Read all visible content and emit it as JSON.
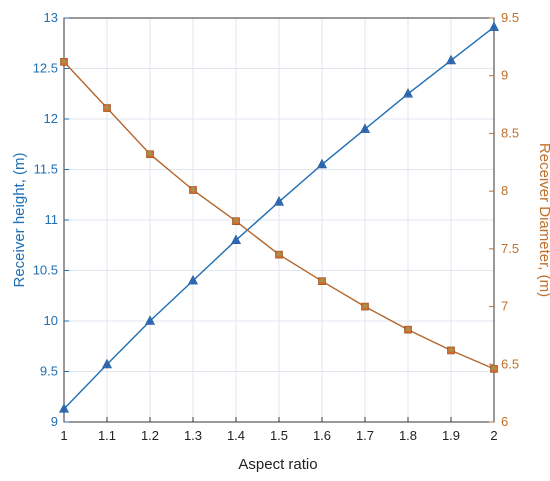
{
  "chart_data": {
    "type": "line",
    "title": "",
    "xlabel": "Aspect ratio",
    "ylabel_left": "Receiver height, (m)",
    "ylabel_right": "Receiver Diameter, (m)",
    "x": [
      1,
      1.1,
      1.2,
      1.3,
      1.4,
      1.5,
      1.6,
      1.7,
      1.8,
      1.9,
      2
    ],
    "xlim": [
      1,
      2
    ],
    "xticks": [
      "1",
      "1.1",
      "1.2",
      "1.3",
      "1.4",
      "1.5",
      "1.6",
      "1.7",
      "1.8",
      "1.9",
      "2"
    ],
    "ylim_left": [
      9,
      13
    ],
    "yticks_left": [
      "9",
      "9.5",
      "10",
      "10.5",
      "11",
      "11.5",
      "12",
      "12.5",
      "13"
    ],
    "ylim_right": [
      6,
      9.5
    ],
    "yticks_right": [
      "6",
      "6.5",
      "7",
      "7.5",
      "8",
      "8.5",
      "9",
      "9.5"
    ],
    "grid": true,
    "series": [
      {
        "name": "",
        "axis": "left",
        "color": "#1f6fb5",
        "values": [
          9.13,
          9.57,
          10.0,
          10.4,
          10.8,
          11.18,
          11.55,
          11.9,
          12.25,
          12.58,
          12.91
        ]
      },
      {
        "name": "",
        "axis": "right",
        "color": "#b5652b",
        "values": [
          9.12,
          8.72,
          8.32,
          8.01,
          7.74,
          7.45,
          7.22,
          7.0,
          6.8,
          6.62,
          6.46
        ]
      }
    ],
    "colors": {
      "left_axis": "#1f6fb5",
      "right_axis": "#c0702a",
      "grid": "#dfe6ee",
      "frame": "#333333"
    }
  }
}
